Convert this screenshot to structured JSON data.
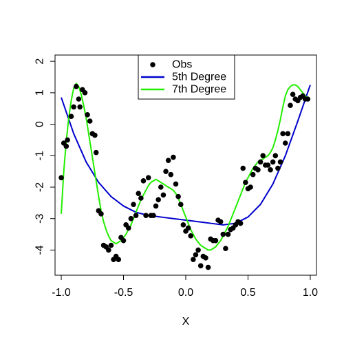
{
  "chart_data": {
    "type": "scatter",
    "title": "",
    "xlabel": "X",
    "ylabel": "",
    "xlim": [
      -1.05,
      1.05
    ],
    "ylim": [
      -4.8,
      2.2
    ],
    "x_ticks": [
      -1.0,
      -0.5,
      0.0,
      0.5,
      1.0
    ],
    "x_tick_labels": [
      "-1.0",
      "-0.5",
      "0.0",
      "0.5",
      "1.0"
    ],
    "y_ticks": [
      -4,
      -3,
      -2,
      -1,
      0,
      1,
      2
    ],
    "y_tick_labels": [
      "-4",
      "-3",
      "-2",
      "-1",
      "0",
      "1",
      "2"
    ],
    "grid": false,
    "legend_position": "top-center",
    "series": [
      {
        "name": "Obs",
        "kind": "points",
        "color": "#000000",
        "x": [
          -1.0,
          -0.98,
          -0.96,
          -0.95,
          -0.92,
          -0.9,
          -0.88,
          -0.86,
          -0.85,
          -0.83,
          -0.81,
          -0.79,
          -0.77,
          -0.75,
          -0.73,
          -0.72,
          -0.7,
          -0.68,
          -0.66,
          -0.64,
          -0.62,
          -0.6,
          -0.58,
          -0.56,
          -0.54,
          -0.52,
          -0.5,
          -0.48,
          -0.46,
          -0.44,
          -0.42,
          -0.4,
          -0.38,
          -0.36,
          -0.34,
          -0.32,
          -0.3,
          -0.28,
          -0.26,
          -0.24,
          -0.22,
          -0.2,
          -0.18,
          -0.16,
          -0.14,
          -0.12,
          -0.1,
          -0.08,
          -0.06,
          -0.04,
          -0.02,
          0.0,
          0.02,
          0.04,
          0.06,
          0.08,
          0.1,
          0.12,
          0.14,
          0.16,
          0.18,
          0.2,
          0.22,
          0.24,
          0.26,
          0.28,
          0.3,
          0.32,
          0.34,
          0.36,
          0.38,
          0.4,
          0.42,
          0.44,
          0.46,
          0.48,
          0.5,
          0.52,
          0.54,
          0.56,
          0.58,
          0.6,
          0.62,
          0.64,
          0.66,
          0.68,
          0.7,
          0.72,
          0.74,
          0.76,
          0.78,
          0.8,
          0.82,
          0.84,
          0.86,
          0.88,
          0.9,
          0.92,
          0.94,
          0.96,
          0.98
        ],
        "y": [
          -1.7,
          -0.6,
          -0.7,
          -0.5,
          0.25,
          0.55,
          1.2,
          0.8,
          0.55,
          1.1,
          1.0,
          0.3,
          0.1,
          -0.3,
          -0.35,
          -0.9,
          -2.75,
          -2.85,
          -3.85,
          -3.9,
          -4.0,
          -3.85,
          -4.3,
          -4.2,
          -4.3,
          -3.6,
          -3.7,
          -3.2,
          -3.3,
          -3.0,
          -2.55,
          -2.9,
          -2.2,
          -2.35,
          -1.8,
          -2.9,
          -1.7,
          -2.9,
          -2.9,
          -2.6,
          -2.4,
          -2.0,
          -2.25,
          -1.5,
          -1.15,
          -1.6,
          -1.05,
          -1.9,
          -2.3,
          -2.55,
          -3.2,
          -3.4,
          -3.3,
          -3.55,
          -4.3,
          -4.15,
          -4.0,
          -4.5,
          -4.2,
          -4.25,
          -4.55,
          -3.65,
          -3.7,
          -3.7,
          -3.05,
          -3.1,
          -3.5,
          -3.95,
          -3.5,
          -3.35,
          -3.3,
          -3.2,
          -3.1,
          -3.15,
          -1.4,
          -1.85,
          -2.05,
          -2.0,
          -1.6,
          -1.4,
          -1.45,
          -1.2,
          -1.0,
          -1.3,
          -1.3,
          -1.45,
          -1.2,
          -1.0,
          -1.4,
          -1.2,
          -0.3,
          -0.6,
          -0.3,
          0.6,
          0.95,
          0.8,
          0.75,
          0.85,
          0.9,
          0.8,
          0.8
        ]
      },
      {
        "name": "5th Degree",
        "kind": "line",
        "color": "#0000cc",
        "x": [
          -1.0,
          -0.9,
          -0.8,
          -0.7,
          -0.6,
          -0.5,
          -0.4,
          -0.3,
          -0.2,
          -0.1,
          0.0,
          0.1,
          0.2,
          0.3,
          0.4,
          0.5,
          0.6,
          0.7,
          0.8,
          0.9,
          1.0
        ],
        "y": [
          0.85,
          -0.3,
          -1.2,
          -1.85,
          -2.3,
          -2.6,
          -2.8,
          -2.9,
          -2.95,
          -3.0,
          -3.05,
          -3.1,
          -3.15,
          -3.2,
          -3.15,
          -2.95,
          -2.55,
          -1.9,
          -1.0,
          0.1,
          1.25
        ]
      },
      {
        "name": "7th Degree",
        "kind": "line",
        "color": "#22ee00",
        "x": [
          -1.0,
          -0.98,
          -0.96,
          -0.94,
          -0.92,
          -0.9,
          -0.88,
          -0.86,
          -0.84,
          -0.82,
          -0.8,
          -0.78,
          -0.76,
          -0.74,
          -0.72,
          -0.7,
          -0.68,
          -0.66,
          -0.64,
          -0.62,
          -0.6,
          -0.58,
          -0.56,
          -0.54,
          -0.52,
          -0.5,
          -0.48,
          -0.46,
          -0.44,
          -0.42,
          -0.4,
          -0.38,
          -0.36,
          -0.34,
          -0.32,
          -0.3,
          -0.28,
          -0.26,
          -0.24,
          -0.22,
          -0.2,
          -0.18,
          -0.16,
          -0.14,
          -0.12,
          -0.1,
          -0.08,
          -0.06,
          -0.04,
          -0.02,
          0.0,
          0.02,
          0.04,
          0.06,
          0.08,
          0.1,
          0.12,
          0.14,
          0.16,
          0.18,
          0.2,
          0.22,
          0.24,
          0.26,
          0.28,
          0.3,
          0.32,
          0.34,
          0.36,
          0.38,
          0.4,
          0.42,
          0.44,
          0.46,
          0.48,
          0.5,
          0.52,
          0.54,
          0.56,
          0.58,
          0.6,
          0.62,
          0.64,
          0.66,
          0.68,
          0.7,
          0.72,
          0.74,
          0.76,
          0.78,
          0.8,
          0.82,
          0.84,
          0.86,
          0.88,
          0.9,
          0.92,
          0.94,
          0.96,
          0.98,
          1.0
        ],
        "y": [
          -2.85,
          -1.5,
          -0.55,
          0.2,
          0.75,
          1.15,
          1.3,
          1.2,
          0.95,
          0.6,
          0.2,
          -0.3,
          -0.8,
          -1.3,
          -1.8,
          -2.3,
          -2.75,
          -3.1,
          -3.35,
          -3.55,
          -3.7,
          -3.75,
          -3.8,
          -3.75,
          -3.7,
          -3.6,
          -3.5,
          -3.35,
          -3.2,
          -3.0,
          -2.8,
          -2.6,
          -2.4,
          -2.25,
          -2.1,
          -1.95,
          -1.85,
          -1.8,
          -1.75,
          -1.8,
          -1.85,
          -1.9,
          -1.95,
          -2.0,
          -2.05,
          -2.1,
          -2.2,
          -2.35,
          -2.55,
          -2.75,
          -2.95,
          -3.15,
          -3.35,
          -3.5,
          -3.65,
          -3.75,
          -3.85,
          -3.9,
          -3.95,
          -4.0,
          -4.0,
          -3.95,
          -3.9,
          -3.8,
          -3.7,
          -3.55,
          -3.4,
          -3.25,
          -3.05,
          -2.85,
          -2.65,
          -2.45,
          -2.25,
          -2.05,
          -1.85,
          -1.7,
          -1.55,
          -1.4,
          -1.3,
          -1.2,
          -1.15,
          -1.1,
          -1.05,
          -1.0,
          -0.9,
          -0.75,
          -0.5,
          -0.2,
          0.15,
          0.55,
          0.9,
          1.1,
          1.2,
          1.25,
          1.25,
          1.2,
          1.1,
          1.0,
          0.9,
          0.85,
          0.8
        ]
      }
    ]
  }
}
